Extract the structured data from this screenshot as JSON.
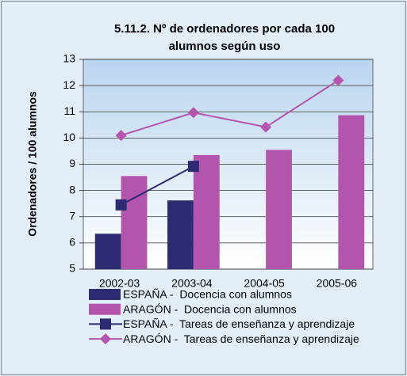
{
  "chart_data": {
    "type": "bar_line",
    "title": [
      "5.11.2. Nº de ordenadores por cada 100",
      "alumnos según uso"
    ],
    "y_label": "Ordenadores / 100 alumnos",
    "categories": [
      "2002-03",
      "2003-04",
      "2004-05",
      "2005-06"
    ],
    "ylim": [
      5,
      13
    ],
    "yticks": [
      5,
      6,
      7,
      8,
      9,
      10,
      11,
      12,
      13
    ],
    "grid": true,
    "series": [
      {
        "name": "ESPAÑA -  Docencia con alumnos",
        "type": "bar",
        "color": "#2e2a72",
        "values": [
          6.35,
          7.62,
          null,
          null
        ]
      },
      {
        "name": "ARAGÓN -  Docencia con alumnos",
        "type": "bar",
        "color": "#b455ad",
        "values": [
          8.55,
          9.35,
          9.55,
          10.87
        ]
      },
      {
        "name": "ESPAÑA -  Tareas de enseñanza y aprendizaje",
        "type": "line",
        "marker": "square",
        "color": "#2e2a72",
        "values": [
          7.45,
          8.92,
          null,
          null
        ]
      },
      {
        "name": "ARAGÓN -  Tareas de enseñanza y aprendizaje",
        "type": "line",
        "marker": "diamond",
        "color": "#b455ad",
        "values": [
          10.1,
          10.97,
          10.42,
          12.2
        ]
      }
    ]
  }
}
